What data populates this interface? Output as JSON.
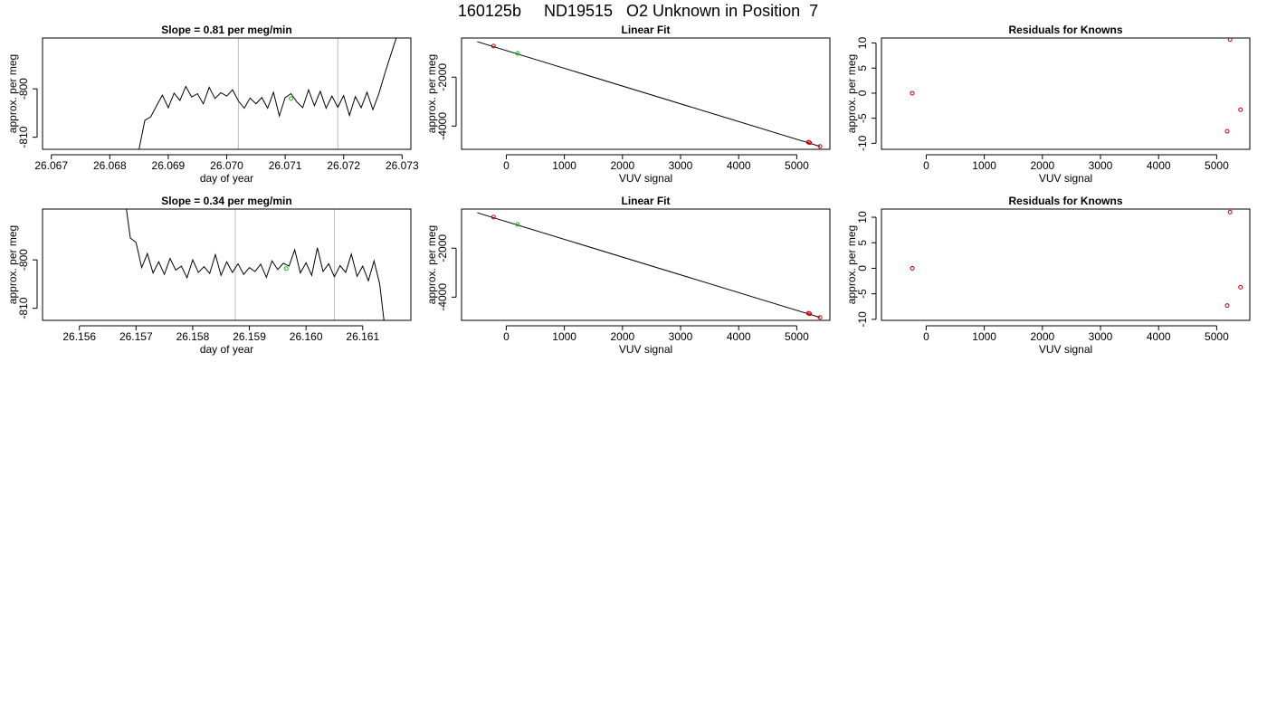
{
  "figure": {
    "title": "160125b     ND19515   O2 Unknown in Position  7"
  },
  "colors": {
    "trace": "#000000",
    "marker_vline": "#bebebe",
    "known_point": "#cd0000",
    "unknown_point": "#00cd00"
  },
  "chart_data": [
    {
      "type": "line",
      "title": "Slope =  0.81  per meg/min",
      "xlabel": "day of year",
      "ylabel": "approx. per meg",
      "xlim": [
        26.06685,
        26.07315
      ],
      "ylim": [
        -812.5,
        -789.5
      ],
      "xticks": [
        "26.067",
        "26.068",
        "26.069",
        "26.070",
        "26.071",
        "26.072",
        "26.073"
      ],
      "yticks": [
        "-800",
        "-810"
      ],
      "vlines": [
        26.0702,
        26.0719
      ],
      "series": [
        {
          "x": [
            26.0685,
            26.0686,
            26.0687,
            26.0688,
            26.0689,
            26.069,
            26.0691,
            26.0692,
            26.0693,
            26.0694,
            26.0695,
            26.0696,
            26.0697,
            26.0698,
            26.0699,
            26.07,
            26.0701,
            26.0702,
            26.0703,
            26.0704,
            26.0705,
            26.0706,
            26.0707,
            26.0708,
            26.0709,
            26.071,
            26.0711,
            26.0712,
            26.0713,
            26.0714,
            26.0715,
            26.0716,
            26.0717,
            26.0718,
            26.0719,
            26.072,
            26.0721,
            26.0722,
            26.0723,
            26.0724,
            26.0725,
            26.0726,
            26.0727,
            26.0728,
            26.0729,
            26.073
          ],
          "y": [
            -812.5,
            -806.5,
            -805.8,
            -803.5,
            -801.3,
            -803.9,
            -800.9,
            -802.4,
            -799.5,
            -801.7,
            -801.0,
            -803.1,
            -799.7,
            -802.0,
            -800.8,
            -801.5,
            -800.2,
            -802.5,
            -804.0,
            -801.9,
            -803.1,
            -801.8,
            -804.0,
            -800.7,
            -805.6,
            -801.8,
            -801.0,
            -802.7,
            -803.9,
            -800.2,
            -803.5,
            -800.5,
            -804.0,
            -801.5,
            -803.8,
            -801.4,
            -805.5,
            -801.6,
            -803.9,
            -800.7,
            -804.3,
            -801.1,
            -797.0,
            -793.2,
            -789.5,
            -780.0
          ]
        }
      ],
      "unknown_points": [
        {
          "x": 26.0711,
          "y": -802.0
        }
      ]
    },
    {
      "type": "scatter",
      "title": "Linear Fit",
      "xlabel": "VUV signal",
      "ylabel": "approx. per meg",
      "xlim": [
        -770,
        5570
      ],
      "ylim": [
        -4950,
        -400
      ],
      "xticks": [
        "0",
        "1000",
        "2000",
        "3000",
        "4000",
        "5000"
      ],
      "yticks": [
        "-2000",
        "-4000"
      ],
      "fit_line": {
        "x": [
          -500,
          5400
        ],
        "y": [
          -550,
          -4830
        ]
      },
      "knowns": {
        "x": [
          -220,
          5200,
          5220,
          5400
        ],
        "y": [
          -730,
          -4660,
          -4680,
          -4830
        ]
      },
      "unknowns": {
        "x": [
          195
        ],
        "y": [
          -1030
        ]
      }
    },
    {
      "type": "scatter",
      "title": "Residuals for Knowns",
      "xlabel": "VUV signal",
      "ylabel": "approx. per meg",
      "xlim": [
        -770,
        5570
      ],
      "ylim": [
        -11.2,
        11.0
      ],
      "xticks": [
        "0",
        "1000",
        "2000",
        "3000",
        "4000",
        "5000"
      ],
      "yticks": [
        "10",
        "5",
        "0",
        "-5",
        "-10"
      ],
      "knowns": {
        "x": [
          -240,
          5230,
          5180,
          5410
        ],
        "y": [
          0.0,
          10.7,
          -7.6,
          -3.3
        ]
      }
    },
    {
      "type": "line",
      "title": "Slope =  0.34  per meg/min",
      "xlabel": "day of year",
      "ylabel": "approx. per meg",
      "xlim": [
        26.15535,
        26.16185
      ],
      "ylim": [
        -812.5,
        -789.5
      ],
      "xticks": [
        "26.156",
        "26.157",
        "26.158",
        "26.159",
        "26.160",
        "26.161"
      ],
      "yticks": [
        "-800",
        "-810"
      ],
      "vlines": [
        26.15875,
        26.1605
      ],
      "series": [
        {
          "x": [
            26.1568,
            26.1569,
            26.157,
            26.1571,
            26.1572,
            26.1573,
            26.1574,
            26.1575,
            26.1576,
            26.1577,
            26.1578,
            26.1579,
            26.158,
            26.1581,
            26.1582,
            26.1583,
            26.1584,
            26.1585,
            26.1586,
            26.1587,
            26.1588,
            26.1589,
            26.159,
            26.1591,
            26.1592,
            26.1593,
            26.1594,
            26.1595,
            26.1596,
            26.1597,
            26.1598,
            26.1599,
            26.16,
            26.1601,
            26.1602,
            26.1603,
            26.1604,
            26.1605,
            26.1606,
            26.1607,
            26.1608,
            26.1609,
            26.161,
            26.1611,
            26.1612,
            26.1613,
            26.1614
          ],
          "y": [
            -787.0,
            -795.5,
            -796.4,
            -801.6,
            -798.7,
            -802.7,
            -800.4,
            -803.0,
            -799.7,
            -802.1,
            -801.3,
            -803.7,
            -800.0,
            -802.6,
            -801.4,
            -802.8,
            -798.9,
            -803.2,
            -800.4,
            -802.6,
            -800.8,
            -803.0,
            -801.6,
            -802.4,
            -800.9,
            -803.6,
            -800.2,
            -802.0,
            -800.7,
            -801.3,
            -797.9,
            -802.7,
            -800.6,
            -803.2,
            -797.5,
            -802.4,
            -800.8,
            -803.5,
            -801.2,
            -802.6,
            -798.8,
            -803.4,
            -801.3,
            -804.3,
            -800.2,
            -805.0,
            -815.0
          ]
        }
      ],
      "unknown_points": [
        {
          "x": 26.15965,
          "y": -801.8
        }
      ]
    },
    {
      "type": "scatter",
      "title": "Linear Fit",
      "xlabel": "VUV signal",
      "ylabel": "approx. per meg",
      "xlim": [
        -770,
        5570
      ],
      "ylim": [
        -4950,
        -400
      ],
      "xticks": [
        "0",
        "1000",
        "2000",
        "3000",
        "4000",
        "5000"
      ],
      "yticks": [
        "-2000",
        "-4000"
      ],
      "fit_line": {
        "x": [
          -500,
          5400
        ],
        "y": [
          -550,
          -4830
        ]
      },
      "knowns": {
        "x": [
          -220,
          5200,
          5220,
          5400
        ],
        "y": [
          -730,
          -4660,
          -4680,
          -4830
        ]
      },
      "unknowns": {
        "x": [
          195
        ],
        "y": [
          -1030
        ]
      }
    },
    {
      "type": "scatter",
      "title": "Residuals for Knowns",
      "xlabel": "VUV signal",
      "ylabel": "approx. per meg",
      "xlim": [
        -770,
        5570
      ],
      "ylim": [
        -10.2,
        11.6
      ],
      "xticks": [
        "0",
        "1000",
        "2000",
        "3000",
        "4000",
        "5000"
      ],
      "yticks": [
        "10",
        "5",
        "0",
        "-5",
        "-10"
      ],
      "knowns": {
        "x": [
          -240,
          5230,
          5180,
          5410
        ],
        "y": [
          0.0,
          11.0,
          -7.3,
          -3.7
        ]
      }
    }
  ]
}
